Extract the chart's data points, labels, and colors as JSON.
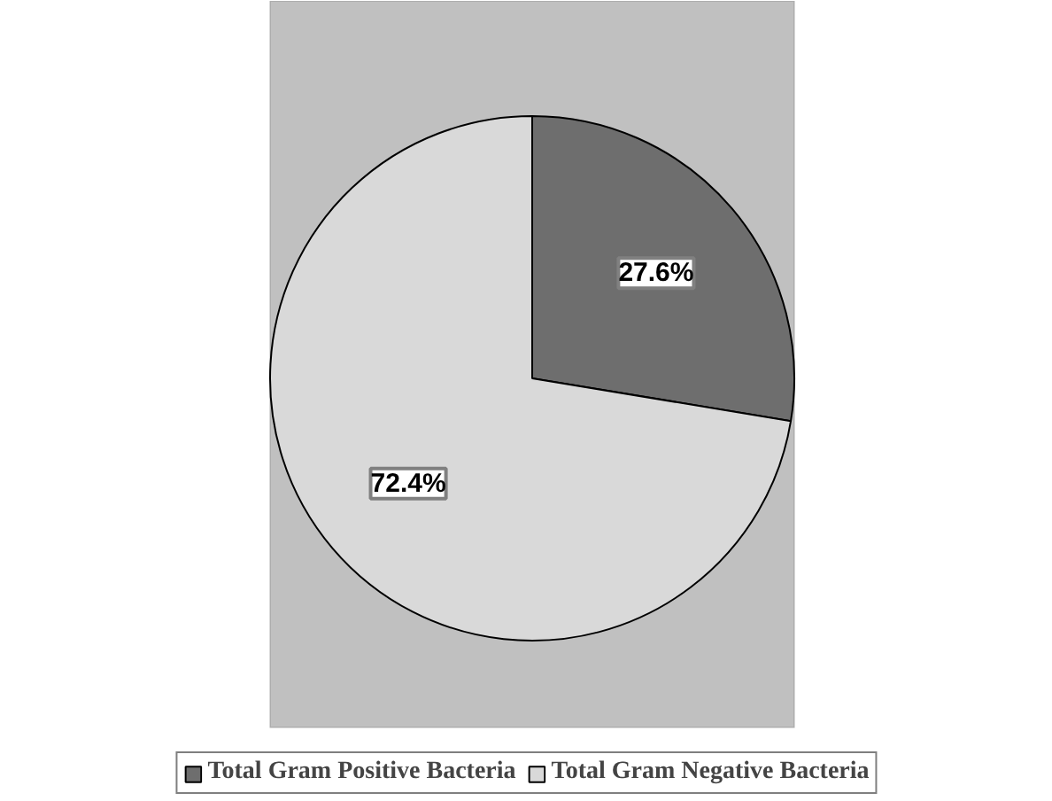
{
  "chart_data": {
    "type": "pie",
    "categories": [
      "Total Gram Positive Bacteria",
      "Total Gram Negative Bacteria"
    ],
    "values": [
      27.6,
      72.4
    ],
    "colors": [
      "#6e6e6e",
      "#d9d9d9"
    ],
    "value_labels": [
      "27.6%",
      "72.4%"
    ],
    "legend": "bottom"
  }
}
